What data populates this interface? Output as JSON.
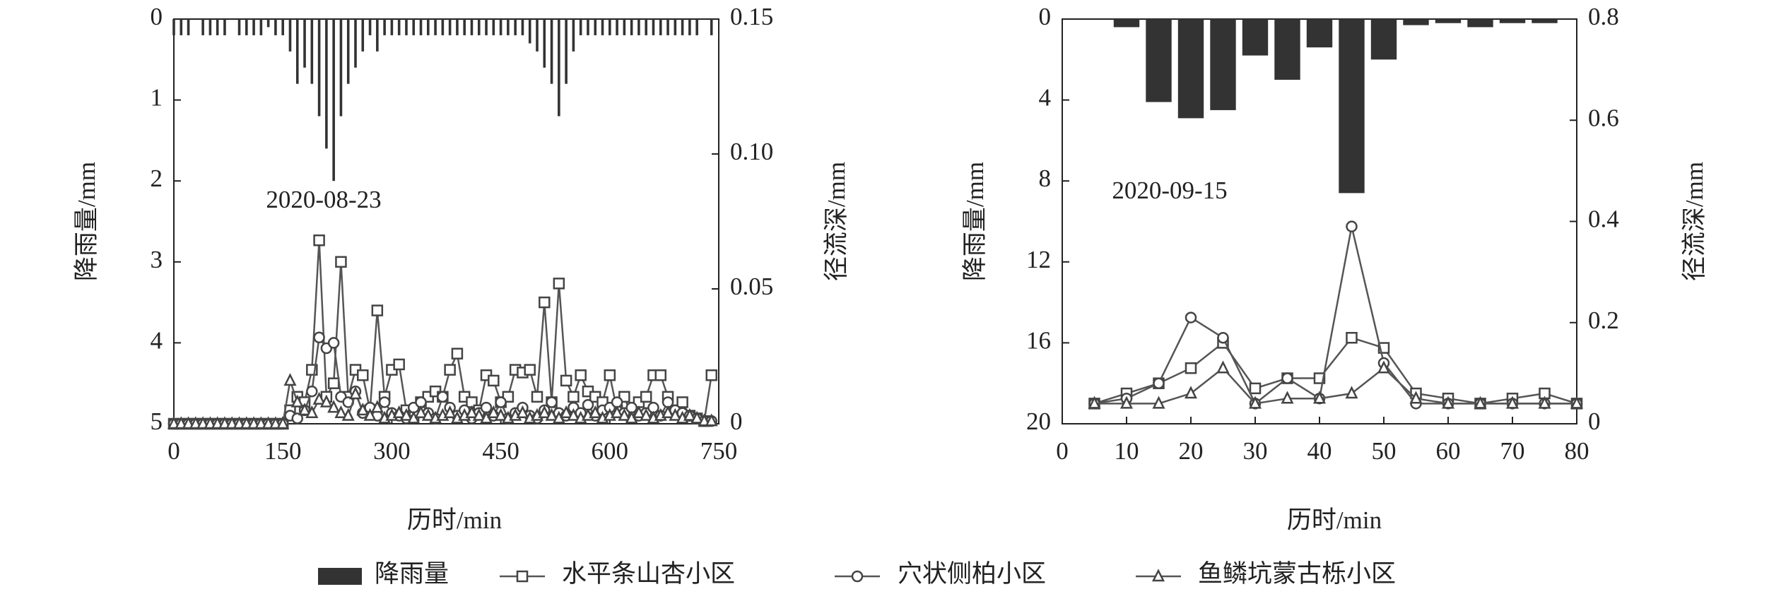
{
  "chart_data": [
    {
      "type": "bar_line",
      "annotation": "2020-08-23",
      "xlabel": "历时/min",
      "ylabel": "降雨量/mm",
      "y2label": "径流深/mm",
      "xlim": [
        0,
        750
      ],
      "xticks": [
        0,
        150,
        300,
        450,
        600,
        750
      ],
      "ylim": [
        0,
        5
      ],
      "yticks": [
        0,
        1,
        2,
        3,
        4,
        5
      ],
      "y_inverted": true,
      "y2lim": [
        0,
        0.15
      ],
      "y2ticks": [
        0,
        0.05,
        {
          "value": 0.1,
          "label": "0.10"
        },
        0.15
      ],
      "x": [
        0,
        10,
        20,
        30,
        40,
        50,
        60,
        70,
        80,
        90,
        100,
        110,
        120,
        130,
        140,
        150,
        160,
        170,
        180,
        190,
        200,
        210,
        220,
        230,
        240,
        250,
        260,
        270,
        280,
        290,
        300,
        310,
        320,
        330,
        340,
        350,
        360,
        370,
        380,
        390,
        400,
        410,
        420,
        430,
        440,
        450,
        460,
        470,
        480,
        490,
        500,
        510,
        520,
        530,
        540,
        550,
        560,
        570,
        580,
        590,
        600,
        610,
        620,
        630,
        640,
        650,
        660,
        670,
        680,
        690,
        700,
        710,
        720,
        730,
        740
      ],
      "series": [
        {
          "name": "降雨量",
          "type": "bar",
          "color": "#333333",
          "values": [
            0.2,
            0.2,
            0.2,
            0,
            0.2,
            0.2,
            0.2,
            0.2,
            0,
            0.2,
            0.2,
            0.2,
            0.2,
            0.1,
            0.2,
            0.2,
            0.4,
            0.8,
            0.6,
            0.8,
            1.2,
            1.6,
            2.0,
            1.2,
            0.8,
            0.6,
            0.4,
            0.2,
            0.4,
            0.2,
            0.2,
            0.2,
            0.2,
            0.2,
            0.2,
            0.2,
            0.2,
            0.2,
            0.2,
            0.2,
            0.2,
            0.2,
            0.2,
            0.2,
            0.2,
            0.2,
            0.2,
            0.2,
            0.2,
            0.3,
            0.4,
            0.6,
            0.8,
            1.2,
            0.8,
            0.4,
            0.2,
            0.2,
            0.2,
            0.2,
            0.2,
            0.2,
            0.2,
            0.2,
            0.2,
            0.2,
            0.2,
            0.2,
            0.2,
            0.2,
            0.2,
            0.2,
            0.2,
            0,
            0.2
          ]
        },
        {
          "name": "水平条山杏小区",
          "type": "line",
          "marker": "square",
          "axis": "y2",
          "color": "#555555",
          "values": [
            0,
            0,
            0,
            0,
            0,
            0,
            0,
            0,
            0,
            0,
            0,
            0,
            0,
            0,
            0,
            0,
            0.005,
            0.01,
            0.008,
            0.02,
            0.068,
            0.01,
            0.015,
            0.06,
            0.01,
            0.02,
            0.018,
            0.005,
            0.042,
            0.01,
            0.02,
            0.022,
            0.005,
            0.003,
            0.008,
            0.01,
            0.012,
            0.01,
            0.02,
            0.026,
            0.01,
            0.008,
            0.005,
            0.018,
            0.016,
            0.008,
            0.01,
            0.02,
            0.019,
            0.02,
            0.01,
            0.045,
            0.008,
            0.052,
            0.016,
            0.01,
            0.018,
            0.012,
            0.01,
            0.008,
            0.018,
            0.005,
            0.01,
            0.003,
            0.008,
            0.01,
            0.018,
            0.018,
            0.01,
            0.005,
            0.008,
            0.003,
            0.002,
            0.001,
            0.018
          ]
        },
        {
          "name": "穴状侧柏小区",
          "type": "line",
          "marker": "circle",
          "axis": "y2",
          "color": "#555555",
          "values": [
            0,
            0,
            0,
            0,
            0,
            0,
            0,
            0,
            0,
            0,
            0,
            0,
            0,
            0,
            0,
            0,
            0.003,
            0.002,
            0.005,
            0.012,
            0.032,
            0.028,
            0.03,
            0.01,
            0.008,
            0.012,
            0.004,
            0.006,
            0.003,
            0.008,
            0.004,
            0.003,
            0.002,
            0.006,
            0.008,
            0.004,
            0.002,
            0.01,
            0.006,
            0.003,
            0.005,
            0.002,
            0.004,
            0.006,
            0.003,
            0.008,
            0.002,
            0.004,
            0.006,
            0.003,
            0.002,
            0.005,
            0.008,
            0.004,
            0.003,
            0.006,
            0.004,
            0.007,
            0.003,
            0.005,
            0.006,
            0.008,
            0.004,
            0.006,
            0.003,
            0.004,
            0.006,
            0.003,
            0.008,
            0.005,
            0.004,
            0.003,
            0.002,
            0.001,
            0.001
          ]
        },
        {
          "name": "鱼鳞坑蒙古栎小区",
          "type": "line",
          "marker": "triangle",
          "axis": "y2",
          "color": "#555555",
          "values": [
            0,
            0,
            0,
            0,
            0,
            0,
            0,
            0,
            0,
            0,
            0,
            0,
            0,
            0,
            0,
            0,
            0.016,
            0.008,
            0.005,
            0.004,
            0.009,
            0.008,
            0.006,
            0.004,
            0.003,
            0.011,
            0.005,
            0.003,
            0.006,
            0.002,
            0.003,
            0.004,
            0.003,
            0.002,
            0.004,
            0.003,
            0.002,
            0.003,
            0.004,
            0.002,
            0.003,
            0.004,
            0.003,
            0.002,
            0.004,
            0.003,
            0.002,
            0.003,
            0.004,
            0.002,
            0.003,
            0.004,
            0.003,
            0.002,
            0.004,
            0.003,
            0.002,
            0.003,
            0.004,
            0.002,
            0.003,
            0.004,
            0.003,
            0.002,
            0.004,
            0.003,
            0.002,
            0.003,
            0.004,
            0.003,
            0.002,
            0.003,
            0.002,
            0.001,
            0.001
          ]
        }
      ]
    },
    {
      "type": "bar_line",
      "annotation": "2020-09-15",
      "xlabel": "历时/min",
      "ylabel": "降雨量/mm",
      "y2label": "径流深/mm",
      "xlim": [
        0,
        80
      ],
      "xticks": [
        0,
        10,
        20,
        30,
        40,
        50,
        60,
        70,
        80
      ],
      "ylim": [
        0,
        20
      ],
      "yticks": [
        0,
        4,
        8,
        12,
        16,
        20
      ],
      "y_inverted": true,
      "y2lim": [
        0,
        0.8
      ],
      "y2ticks": [
        0,
        0.2,
        0.4,
        0.6,
        0.8
      ],
      "x": [
        5,
        10,
        15,
        20,
        25,
        30,
        35,
        40,
        45,
        50,
        55,
        60,
        65,
        70,
        75,
        80
      ],
      "series": [
        {
          "type": "bar",
          "color": "#333333",
          "values": [
            null,
            0.4,
            4.1,
            4.9,
            4.5,
            1.8,
            3.0,
            1.4,
            8.6,
            2.0,
            0.3,
            0.2,
            0.4,
            0.2,
            0.2,
            null
          ]
        },
        {
          "type": "line",
          "marker": "square",
          "axis": "y2",
          "color": "#555555",
          "values": [
            0.04,
            0.06,
            0.08,
            0.11,
            0.16,
            0.07,
            0.09,
            0.09,
            0.17,
            0.15,
            0.06,
            0.05,
            0.04,
            0.05,
            0.06,
            0.04
          ]
        },
        {
          "type": "line",
          "marker": "circle",
          "axis": "y2",
          "color": "#555555",
          "values": [
            0.04,
            0.05,
            0.08,
            0.21,
            0.17,
            0.04,
            0.09,
            0.05,
            0.39,
            0.12,
            0.04,
            0.04,
            0.04,
            0.04,
            0.04,
            0.04
          ]
        },
        {
          "type": "line",
          "marker": "triangle",
          "axis": "y2",
          "color": "#555555",
          "values": [
            0.04,
            0.04,
            0.04,
            0.06,
            0.11,
            0.04,
            0.05,
            0.05,
            0.06,
            0.11,
            0.05,
            0.04,
            0.04,
            0.04,
            0.04,
            0.04
          ]
        }
      ]
    }
  ]
}
